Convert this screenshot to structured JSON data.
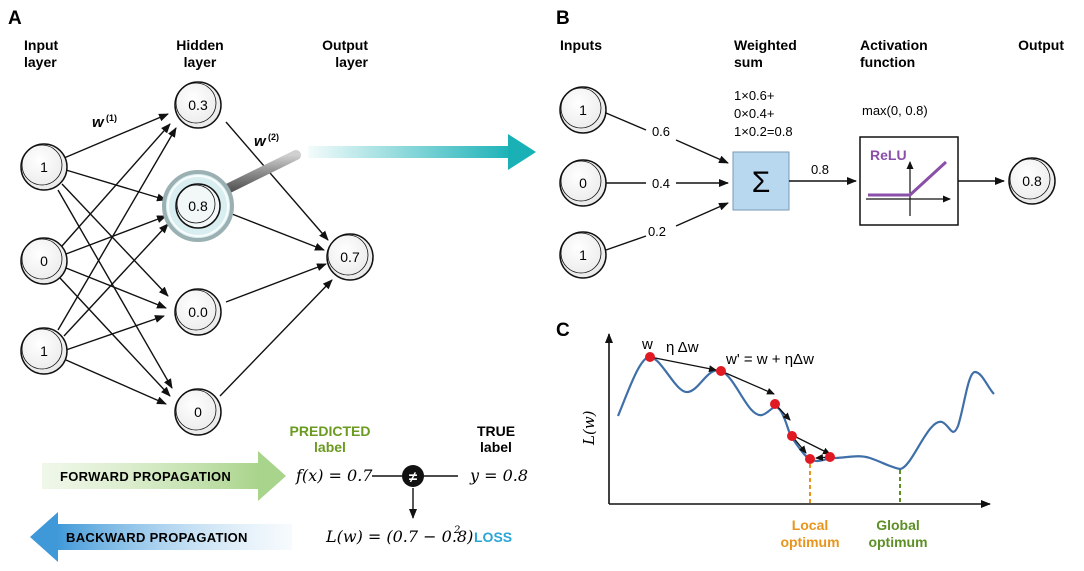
{
  "panel_a": {
    "letter": "A",
    "input_header": [
      "Input",
      "layer"
    ],
    "hidden_header": [
      "Hidden",
      "layer"
    ],
    "output_header": [
      "Output",
      "layer"
    ],
    "input_nodes": [
      "1",
      "0",
      "1"
    ],
    "hidden_nodes": [
      "0.3",
      "0.8",
      "0.0",
      "0"
    ],
    "output_node": "0.7",
    "w1_label": "w",
    "w1_sup": "(1)",
    "w2_label": "w",
    "w2_sup": "(2)",
    "predicted_label": [
      "PREDICTED",
      "label"
    ],
    "true_label": [
      "TRUE",
      "label"
    ],
    "forward_label": "FORWARD PROPAGATION",
    "backward_label": "BACKWARD PROPAGATION",
    "fx": "f(x) = 0.7",
    "y": "y = 0.8",
    "not_equal": "≠",
    "loss_eq": "L(w) = (0.7 − 0.8)",
    "loss_exp": "2",
    "loss_word": "LOSS",
    "colors": {
      "predicted": "#6a9a1f",
      "loss": "#2aa6d6",
      "forward": "#b9dca0",
      "backward": "#4c9fd8",
      "magnifier": "#d9eef0"
    }
  },
  "panel_b": {
    "letter": "B",
    "inputs_header": "Inputs",
    "weighted_header": [
      "Weighted",
      "sum"
    ],
    "activation_header": [
      "Activation",
      "function"
    ],
    "output_header": "Output",
    "input_nodes": [
      "1",
      "0",
      "1"
    ],
    "weights": [
      "0.6",
      "0.4",
      "0.2"
    ],
    "sum_lines": [
      "1×0.6+",
      "0×0.4+",
      "1×0.2=0.8"
    ],
    "sum_symbol": "Σ",
    "sum_out": "0.8",
    "max_label": "max(0, 0.8)",
    "relu_label": "ReLU",
    "output_node": "0.8",
    "colors": {
      "sum_box": "#b8d8f0",
      "relu": "#8a4fa8",
      "teal_arrow": "#19b1b6"
    }
  },
  "panel_c": {
    "letter": "C",
    "ylabel": "L(w)",
    "w_label": "w",
    "eta_label": "η Δw",
    "update_label": "w' = w + ηΔw",
    "local_label": [
      "Local",
      "optimum"
    ],
    "global_label": [
      "Global",
      "optimum"
    ],
    "colors": {
      "curve": "#3f6fa8",
      "points": "#e01a22",
      "local": "#e8951d",
      "global": "#5d8f25"
    }
  }
}
